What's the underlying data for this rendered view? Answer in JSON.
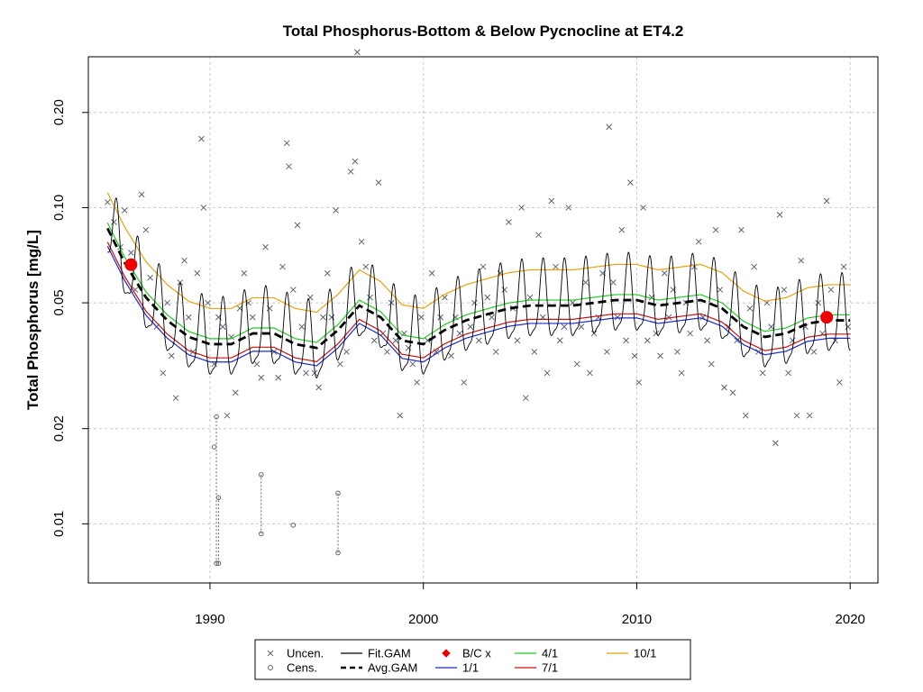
{
  "chart_data": {
    "type": "line",
    "title": "Total Phosphorus-Bottom & Below Pycnocline at ET4.2",
    "xlabel": "",
    "ylabel": "Total Phosphorus [mg/L]",
    "xlim": [
      1984.3,
      2021.3
    ],
    "ylim": [
      0.0065,
      0.3
    ],
    "y_scale": "log",
    "grid": true,
    "x_ticks": [
      1990,
      2000,
      2010,
      2020
    ],
    "x_tick_labels": [
      "1990",
      "2000",
      "2010",
      "2020"
    ],
    "y_ticks": [
      0.01,
      0.02,
      0.05,
      0.1,
      0.2
    ],
    "y_tick_labels": [
      "0.01",
      "0.02",
      "0.05",
      "0.10",
      "0.20"
    ],
    "legend_position": "bottom",
    "legend": [
      {
        "label": "Uncen.",
        "kind": "x",
        "color": "#5a6472"
      },
      {
        "label": "Cens.",
        "kind": "circle",
        "color": "#5a6472"
      },
      {
        "label": "Fit.GAM",
        "kind": "line",
        "color": "#000000"
      },
      {
        "label": "Avg.GAM",
        "kind": "dash",
        "color": "#000000"
      },
      {
        "label": "B/C x",
        "kind": "diamond",
        "color": "#e00000"
      },
      {
        "label": "1/1",
        "kind": "line",
        "color": "#1a2ad0"
      },
      {
        "label": "4/1",
        "kind": "line",
        "color": "#22cc22"
      },
      {
        "label": "7/1",
        "kind": "line",
        "color": "#cc1111"
      },
      {
        "label": "10/1",
        "kind": "line",
        "color": "#e8a20a"
      }
    ],
    "colors": {
      "uncen": "#5a6472",
      "fit": "#000000",
      "avg": "#000000",
      "s1_1": "#1a2ad0",
      "s4_1": "#22cc22",
      "s7_1": "#cc1111",
      "s10_1": "#e8a20a",
      "bc": "#ee0000",
      "grid": "#c8c8c8"
    },
    "avg_gam": {
      "x": [
        1985.2,
        1986,
        1987,
        1988,
        1989,
        1990,
        1991,
        1992,
        1993,
        1994,
        1995,
        1996,
        1997,
        1998,
        1999,
        2000,
        2001,
        2002,
        2003,
        2004,
        2005,
        2006,
        2007,
        2008,
        2009,
        2010,
        2011,
        2012,
        2013,
        2014,
        2015,
        2016,
        2017,
        2018,
        2019,
        2020
      ],
      "y": [
        0.086,
        0.067,
        0.052,
        0.044,
        0.039,
        0.037,
        0.037,
        0.04,
        0.04,
        0.037,
        0.036,
        0.041,
        0.049,
        0.045,
        0.038,
        0.037,
        0.041,
        0.044,
        0.046,
        0.048,
        0.049,
        0.049,
        0.049,
        0.05,
        0.051,
        0.051,
        0.049,
        0.05,
        0.051,
        0.048,
        0.042,
        0.039,
        0.04,
        0.043,
        0.044,
        0.044
      ]
    },
    "seasonal_offsets": {
      "labels": [
        "1/1",
        "4/1",
        "7/1",
        "10/1"
      ],
      "s1_1": -0.13,
      "s4_1": 0.04,
      "s7_1": -0.1,
      "s10_1": 0.26
    },
    "fit_gam_amplitude": 0.27,
    "bc_points": [
      {
        "x": 1986.3,
        "y": 0.066
      },
      {
        "x": 2018.9,
        "y": 0.045
      }
    ],
    "uncensored": [
      [
        1985.2,
        0.104
      ],
      [
        1985.5,
        0.09
      ],
      [
        1985.8,
        0.075
      ],
      [
        1986.0,
        0.098
      ],
      [
        1986.3,
        0.072
      ],
      [
        1986.5,
        0.055
      ],
      [
        1986.8,
        0.11
      ],
      [
        1987.0,
        0.085
      ],
      [
        1987.2,
        0.06
      ],
      [
        1987.5,
        0.042
      ],
      [
        1987.8,
        0.03
      ],
      [
        1988.0,
        0.05
      ],
      [
        1988.2,
        0.034
      ],
      [
        1988.4,
        0.025
      ],
      [
        1988.6,
        0.058
      ],
      [
        1988.8,
        0.068
      ],
      [
        1989.0,
        0.045
      ],
      [
        1989.2,
        0.035
      ],
      [
        1989.4,
        0.062
      ],
      [
        1989.6,
        0.165
      ],
      [
        1989.7,
        0.1
      ],
      [
        1989.9,
        0.05
      ],
      [
        1990.2,
        0.032
      ],
      [
        1990.4,
        0.045
      ],
      [
        1990.6,
        0.042
      ],
      [
        1990.8,
        0.022
      ],
      [
        1991.0,
        0.039
      ],
      [
        1991.2,
        0.026
      ],
      [
        1991.4,
        0.048
      ],
      [
        1991.6,
        0.062
      ],
      [
        1991.8,
        0.05
      ],
      [
        1992.0,
        0.045
      ],
      [
        1992.2,
        0.032
      ],
      [
        1992.4,
        0.029
      ],
      [
        1992.6,
        0.075
      ],
      [
        1992.8,
        0.048
      ],
      [
        1993.0,
        0.035
      ],
      [
        1993.2,
        0.029
      ],
      [
        1993.4,
        0.065
      ],
      [
        1993.6,
        0.16
      ],
      [
        1993.7,
        0.135
      ],
      [
        1993.9,
        0.055
      ],
      [
        1994.1,
        0.088
      ],
      [
        1994.3,
        0.042
      ],
      [
        1994.5,
        0.03
      ],
      [
        1994.7,
        0.052
      ],
      [
        1994.9,
        0.03
      ],
      [
        1995.1,
        0.027
      ],
      [
        1995.3,
        0.045
      ],
      [
        1995.5,
        0.062
      ],
      [
        1995.7,
        0.045
      ],
      [
        1995.9,
        0.098
      ],
      [
        1996.1,
        0.032
      ],
      [
        1996.4,
        0.035
      ],
      [
        1996.6,
        0.13
      ],
      [
        1996.8,
        0.14
      ],
      [
        1996.9,
        0.31
      ],
      [
        1997.1,
        0.078
      ],
      [
        1997.3,
        0.065
      ],
      [
        1997.5,
        0.052
      ],
      [
        1997.7,
        0.038
      ],
      [
        1997.9,
        0.12
      ],
      [
        1998.1,
        0.04
      ],
      [
        1998.3,
        0.035
      ],
      [
        1998.5,
        0.05
      ],
      [
        1998.7,
        0.038
      ],
      [
        1998.9,
        0.022
      ],
      [
        1999.1,
        0.04
      ],
      [
        1999.3,
        0.036
      ],
      [
        1999.5,
        0.032
      ],
      [
        1999.7,
        0.028
      ],
      [
        1999.9,
        0.045
      ],
      [
        2000.2,
        0.038
      ],
      [
        2000.4,
        0.062
      ],
      [
        2000.6,
        0.035
      ],
      [
        2000.8,
        0.045
      ],
      [
        2001.0,
        0.052
      ],
      [
        2001.3,
        0.034
      ],
      [
        2001.5,
        0.045
      ],
      [
        2001.7,
        0.04
      ],
      [
        2001.9,
        0.028
      ],
      [
        2002.2,
        0.042
      ],
      [
        2002.4,
        0.05
      ],
      [
        2002.6,
        0.038
      ],
      [
        2002.8,
        0.065
      ],
      [
        2003.0,
        0.052
      ],
      [
        2003.2,
        0.045
      ],
      [
        2003.4,
        0.035
      ],
      [
        2003.6,
        0.062
      ],
      [
        2003.8,
        0.055
      ],
      [
        2004.0,
        0.09
      ],
      [
        2004.2,
        0.048
      ],
      [
        2004.4,
        0.038
      ],
      [
        2004.6,
        0.1
      ],
      [
        2004.8,
        0.025
      ],
      [
        2005.0,
        0.052
      ],
      [
        2005.2,
        0.035
      ],
      [
        2005.4,
        0.082
      ],
      [
        2005.6,
        0.045
      ],
      [
        2005.8,
        0.03
      ],
      [
        2006.0,
        0.105
      ],
      [
        2006.2,
        0.065
      ],
      [
        2006.4,
        0.038
      ],
      [
        2006.6,
        0.042
      ],
      [
        2006.8,
        0.1
      ],
      [
        2007.0,
        0.05
      ],
      [
        2007.2,
        0.032
      ],
      [
        2007.4,
        0.042
      ],
      [
        2007.6,
        0.058
      ],
      [
        2007.8,
        0.03
      ],
      [
        2008.0,
        0.04
      ],
      [
        2008.2,
        0.045
      ],
      [
        2008.4,
        0.062
      ],
      [
        2008.6,
        0.035
      ],
      [
        2008.7,
        0.18
      ],
      [
        2008.9,
        0.058
      ],
      [
        2009.1,
        0.045
      ],
      [
        2009.3,
        0.085
      ],
      [
        2009.5,
        0.038
      ],
      [
        2009.7,
        0.12
      ],
      [
        2009.9,
        0.034
      ],
      [
        2010.1,
        0.028
      ],
      [
        2010.3,
        0.1
      ],
      [
        2010.5,
        0.038
      ],
      [
        2010.7,
        0.052
      ],
      [
        2010.9,
        0.04
      ],
      [
        2011.1,
        0.034
      ],
      [
        2011.3,
        0.062
      ],
      [
        2011.5,
        0.045
      ],
      [
        2011.7,
        0.055
      ],
      [
        2011.9,
        0.035
      ],
      [
        2012.1,
        0.03
      ],
      [
        2012.3,
        0.05
      ],
      [
        2012.5,
        0.04
      ],
      [
        2012.7,
        0.065
      ],
      [
        2012.9,
        0.078
      ],
      [
        2013.1,
        0.045
      ],
      [
        2013.3,
        0.038
      ],
      [
        2013.5,
        0.032
      ],
      [
        2013.7,
        0.085
      ],
      [
        2013.9,
        0.055
      ],
      [
        2014.1,
        0.027
      ],
      [
        2014.3,
        0.042
      ],
      [
        2014.5,
        0.026
      ],
      [
        2014.7,
        0.038
      ],
      [
        2014.9,
        0.085
      ],
      [
        2015.1,
        0.022
      ],
      [
        2015.3,
        0.048
      ],
      [
        2015.5,
        0.065
      ],
      [
        2015.7,
        0.035
      ],
      [
        2015.9,
        0.03
      ],
      [
        2016.1,
        0.05
      ],
      [
        2016.3,
        0.042
      ],
      [
        2016.5,
        0.018
      ],
      [
        2016.7,
        0.095
      ],
      [
        2016.9,
        0.055
      ],
      [
        2017.1,
        0.03
      ],
      [
        2017.3,
        0.038
      ],
      [
        2017.5,
        0.022
      ],
      [
        2017.7,
        0.068
      ],
      [
        2017.9,
        0.042
      ],
      [
        2018.1,
        0.022
      ],
      [
        2018.3,
        0.035
      ],
      [
        2018.5,
        0.05
      ],
      [
        2018.7,
        0.04
      ],
      [
        2018.9,
        0.105
      ],
      [
        2019.1,
        0.055
      ],
      [
        2019.3,
        0.038
      ],
      [
        2019.5,
        0.028
      ],
      [
        2019.7,
        0.065
      ],
      [
        2019.9,
        0.042
      ]
    ],
    "censored": [
      {
        "x": 1990.3,
        "lo": 0.0075,
        "hi": 0.0218
      },
      {
        "x": 1990.4,
        "lo": 0.0075,
        "hi": 0.0121
      },
      {
        "x": 1992.4,
        "lo": 0.0093,
        "hi": 0.0143
      },
      {
        "x": 1996.0,
        "lo": 0.0081,
        "hi": 0.0125
      }
    ],
    "censored_points": [
      [
        1990.2,
        0.0175
      ],
      [
        1993.9,
        0.0099
      ]
    ]
  }
}
